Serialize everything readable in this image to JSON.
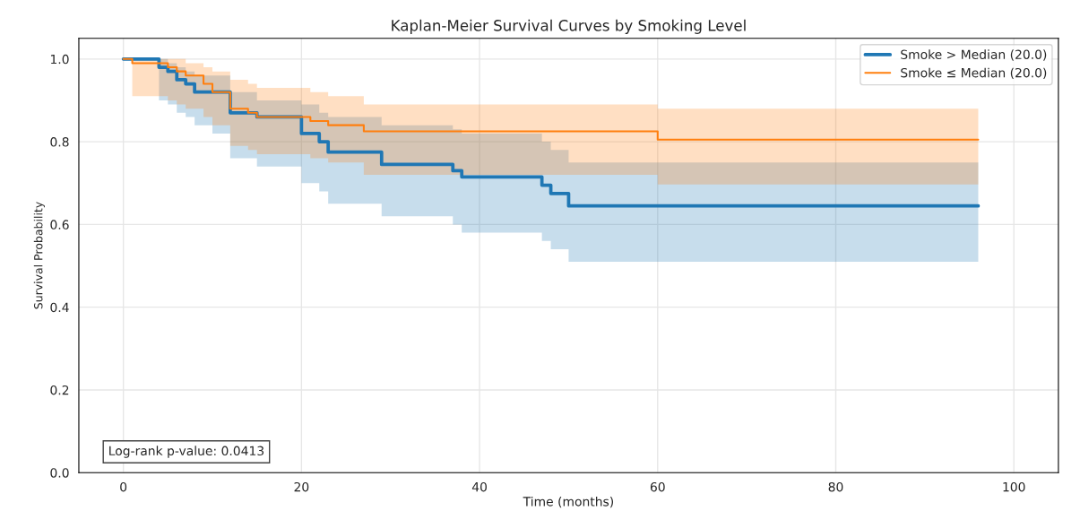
{
  "chart_data": {
    "type": "step",
    "title": "Kaplan-Meier Survival Curves by Smoking Level",
    "xlabel": "Time (months)",
    "ylabel": "Survival Probability",
    "xlim": [
      -5,
      105
    ],
    "xticks": [
      0,
      20,
      40,
      60,
      80,
      100
    ],
    "ylim": [
      0,
      1.05
    ],
    "yticks": [
      {
        "value": 0,
        "label": "0.0"
      },
      {
        "value": 0.2,
        "label": "0.2"
      },
      {
        "value": 0.4,
        "label": "0.4"
      },
      {
        "value": 0.6,
        "label": "0.6"
      },
      {
        "value": 0.8,
        "label": "0.8"
      },
      {
        "value": 1,
        "label": "1.0"
      }
    ],
    "grid": true,
    "legend": "top right",
    "line_style": "solid",
    "annotations": [
      "Log-rank p-value: 0.0413"
    ],
    "series": [
      {
        "name": "Smoke > Median (20.0)",
        "color": "#1f77b4",
        "x": [
          0,
          4,
          5,
          6,
          7,
          8,
          10,
          12,
          15,
          20,
          22,
          23,
          29,
          37,
          38,
          47,
          48,
          50,
          96
        ],
        "values": [
          1.0,
          0.98,
          0.97,
          0.95,
          0.94,
          0.92,
          0.92,
          0.87,
          0.86,
          0.82,
          0.8,
          0.775,
          0.745,
          0.73,
          0.715,
          0.695,
          0.675,
          0.645,
          0.645
        ],
        "lower": [
          1.0,
          0.9,
          0.89,
          0.87,
          0.86,
          0.84,
          0.82,
          0.76,
          0.74,
          0.7,
          0.68,
          0.65,
          0.62,
          0.6,
          0.58,
          0.56,
          0.54,
          0.51,
          0.51
        ],
        "upper": [
          1.0,
          1.0,
          0.99,
          0.98,
          0.97,
          0.96,
          0.96,
          0.92,
          0.9,
          0.89,
          0.87,
          0.86,
          0.84,
          0.83,
          0.82,
          0.8,
          0.78,
          0.75,
          0.75
        ]
      },
      {
        "name": "Smoke ≤ Median (20.0)",
        "color": "#ff7f0e",
        "x": [
          0,
          1,
          5,
          6,
          7,
          9,
          10,
          12,
          14,
          15,
          21,
          23,
          27,
          60,
          96
        ],
        "values": [
          1.0,
          0.99,
          0.98,
          0.97,
          0.96,
          0.94,
          0.92,
          0.88,
          0.87,
          0.86,
          0.85,
          0.84,
          0.825,
          0.805,
          0.805
        ],
        "lower": [
          1.0,
          0.91,
          0.9,
          0.89,
          0.88,
          0.86,
          0.84,
          0.79,
          0.78,
          0.77,
          0.76,
          0.75,
          0.72,
          0.697,
          0.697
        ],
        "upper": [
          1.0,
          1.0,
          1.0,
          1.0,
          0.99,
          0.98,
          0.97,
          0.95,
          0.94,
          0.93,
          0.92,
          0.91,
          0.89,
          0.88,
          0.88
        ]
      }
    ]
  }
}
